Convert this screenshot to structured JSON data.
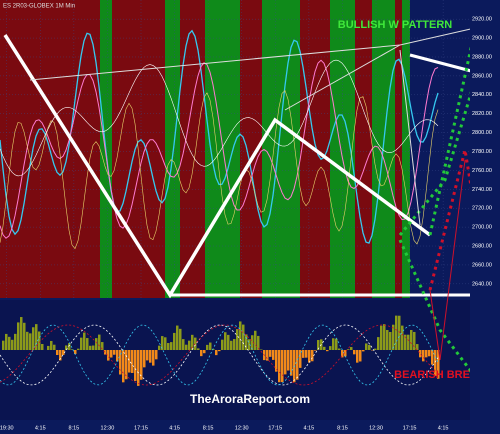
{
  "chart_data": {
    "type": "line",
    "title": "ES 2R03-GLOBEX 1M Min",
    "annotations": [
      "BULLISH W PATTERN",
      "BEARISH BREAK"
    ],
    "watermark": "TheAroraReport.com",
    "categories": [
      "19:30",
      "4:15",
      "8:15",
      "12:30",
      "17:15",
      "4:15",
      "8:15",
      "12:30",
      "17:15",
      "4:15",
      "8:15",
      "12:30",
      "17:15",
      "4:15"
    ],
    "ylim": [
      2625,
      2935
    ],
    "yticks": [
      {
        "value": 2640,
        "label": "2640.00"
      },
      {
        "value": 2660,
        "label": "2660.00"
      },
      {
        "value": 2680,
        "label": "2680.00"
      },
      {
        "value": 2700,
        "label": "2700.00"
      },
      {
        "value": 2720,
        "label": "2720.00"
      },
      {
        "value": 2740,
        "label": "2740.00"
      },
      {
        "value": 2760,
        "label": "2760.00"
      },
      {
        "value": 2780,
        "label": "2780.00"
      },
      {
        "value": 2800,
        "label": "2800.00"
      },
      {
        "value": 2820,
        "label": "2820.00"
      },
      {
        "value": 2840,
        "label": "2840.00"
      },
      {
        "value": 2860,
        "label": "2860.00"
      },
      {
        "value": 2880,
        "label": "2880.00"
      },
      {
        "value": 2900,
        "label": "2900.00"
      },
      {
        "value": 2920,
        "label": "2920.00"
      }
    ],
    "grid": true
  }
}
